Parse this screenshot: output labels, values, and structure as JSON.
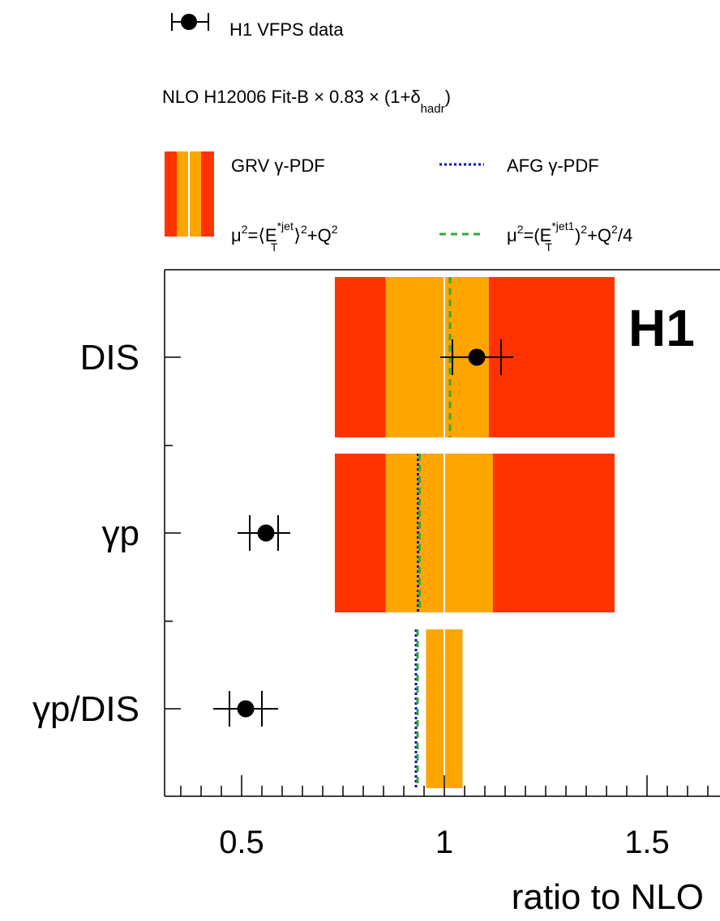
{
  "legend": {
    "data_label": "H1 VFPS data",
    "nlo_label_main": "NLO H12006 Fit-B × 0.83 × (1+δ",
    "nlo_label_sub": "hadr",
    "nlo_label_close": ")",
    "grv_label": "GRV γ-PDF",
    "afg_label": "AFG γ-PDF",
    "scale1_label": {
      "mu": "μ",
      "sq": "2",
      "eq": "=⟨E",
      "sup": "*jet",
      "sub": "T",
      "close": "⟩",
      "sq2": "2",
      "plus": "+Q",
      "sq3": "2"
    },
    "scale2_label": {
      "mu": "μ",
      "sq": "2",
      "eq": "=(E",
      "sup": "*jet1",
      "sub": "T",
      "close": ")",
      "sq2": "2",
      "plus": "+Q",
      "sq3": "2",
      "tail": "/4"
    }
  },
  "experiment_label": "H1",
  "colors": {
    "outer_band": "#ff3300",
    "inner_band": "#ffa500",
    "central_line": "#ffffff",
    "afg_line": "#0000cc",
    "scale_line": "#33aa33",
    "data": "#000000"
  },
  "chart_data": {
    "type": "bar",
    "orientation": "horizontal",
    "xlabel": "ratio to NLO",
    "xlim": [
      0.31,
      1.68
    ],
    "xticks": [
      {
        "value": 0.5,
        "label": "0.5"
      },
      {
        "value": 1.0,
        "label": "1"
      },
      {
        "value": 1.5,
        "label": "1.5"
      }
    ],
    "categories": [
      "DIS",
      "γp",
      "γp/DIS"
    ],
    "data_points": [
      {
        "category": "DIS",
        "value": 1.08,
        "stat_low": 1.02,
        "stat_high": 1.14,
        "tot_low": 0.99,
        "tot_high": 1.17
      },
      {
        "category": "γp",
        "value": 0.56,
        "stat_low": 0.52,
        "stat_high": 0.59,
        "tot_low": 0.49,
        "tot_high": 0.62
      },
      {
        "category": "γp/DIS",
        "value": 0.51,
        "stat_low": 0.47,
        "stat_high": 0.55,
        "tot_low": 0.43,
        "tot_high": 0.59
      }
    ],
    "grv_bands": [
      {
        "category": "DIS",
        "outer": [
          0.73,
          1.42
        ],
        "inner": [
          0.855,
          1.11
        ],
        "central": 1.0
      },
      {
        "category": "γp",
        "outer": [
          0.73,
          1.42
        ],
        "inner": [
          0.855,
          1.12
        ],
        "central": 1.0
      },
      {
        "category": "γp/DIS",
        "outer": null,
        "inner": [
          0.955,
          1.045
        ],
        "central": 1.0
      }
    ],
    "afg_values": [
      {
        "category": "γp",
        "value": 0.935
      },
      {
        "category": "γp/DIS",
        "value": 0.93
      }
    ],
    "scale_values": [
      {
        "category": "DIS",
        "value": 1.01
      },
      {
        "category": "γp",
        "value": 0.935
      },
      {
        "category": "γp/DIS",
        "value": 0.93
      }
    ]
  }
}
